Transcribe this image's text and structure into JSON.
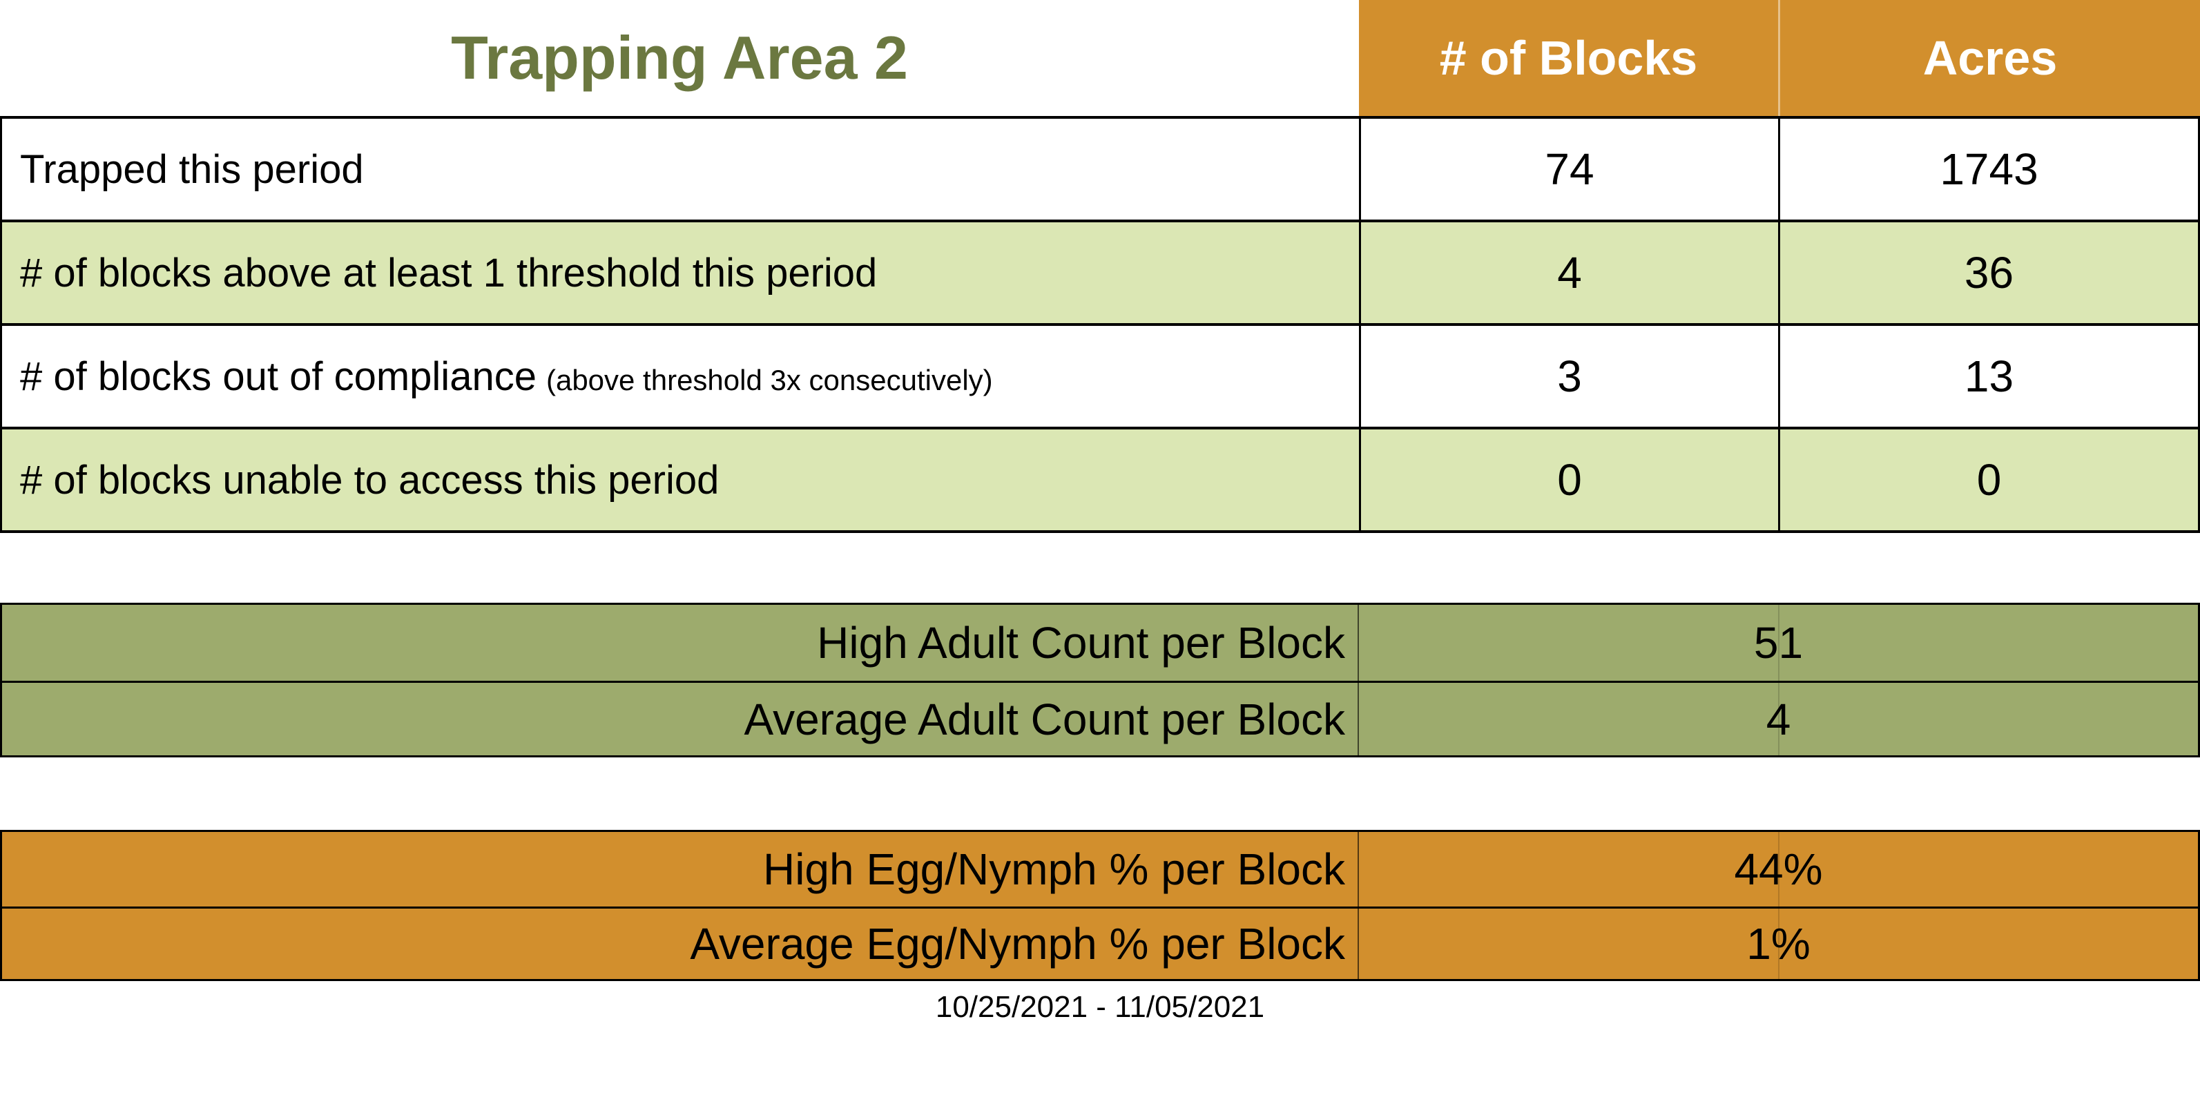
{
  "title": "Trapping Area 2",
  "date_range": "10/25/2021 - 11/05/2021",
  "colors": {
    "header_orange": "#D28F2D",
    "row_light_green": "#DBE7B4",
    "adult_olive": "#9DAB6D",
    "title_green": "#6B7840",
    "header_text": "#FFFFFF",
    "body_text": "#000000"
  },
  "summary_table": {
    "columns": [
      "# of Blocks",
      "Acres"
    ],
    "rows": [
      {
        "label": "Trapped this period",
        "note": "",
        "blocks": "74",
        "acres": "1743"
      },
      {
        "label": "# of blocks above at least 1 threshold this period",
        "note": "",
        "blocks": "4",
        "acres": "36"
      },
      {
        "label": "# of blocks out of compliance",
        "note": "(above threshold 3x consecutively)",
        "blocks": "3",
        "acres": "13"
      },
      {
        "label": "# of blocks unable to access this period",
        "note": "",
        "blocks": "0",
        "acres": "0"
      }
    ]
  },
  "adult_table": {
    "rows": [
      {
        "label": "High Adult Count per Block",
        "value": "51"
      },
      {
        "label": "Average Adult Count per Block",
        "value": "4"
      }
    ]
  },
  "egg_table": {
    "rows": [
      {
        "label": "High Egg/Nymph % per Block",
        "value": "44%"
      },
      {
        "label": "Average Egg/Nymph % per Block",
        "value": "1%"
      }
    ]
  },
  "chart_data": {
    "type": "table",
    "title": "Trapping Area 2",
    "sections": [
      {
        "name": "summary",
        "columns": [
          "",
          "# of Blocks",
          "Acres"
        ],
        "rows": [
          [
            "Trapped this period",
            74,
            1743
          ],
          [
            "# of blocks above at least 1 threshold this period",
            4,
            36
          ],
          [
            "# of blocks out of compliance (above threshold 3x consecutively)",
            3,
            13
          ],
          [
            "# of blocks unable to access this period",
            0,
            0
          ]
        ]
      },
      {
        "name": "adult_counts",
        "rows": [
          [
            "High Adult Count per Block",
            51
          ],
          [
            "Average Adult Count per Block",
            4
          ]
        ]
      },
      {
        "name": "egg_nymph_percent",
        "rows": [
          [
            "High Egg/Nymph % per Block",
            "44%"
          ],
          [
            "Average Egg/Nymph % per Block",
            "1%"
          ]
        ]
      }
    ],
    "footer": "10/25/2021 - 11/05/2021"
  }
}
